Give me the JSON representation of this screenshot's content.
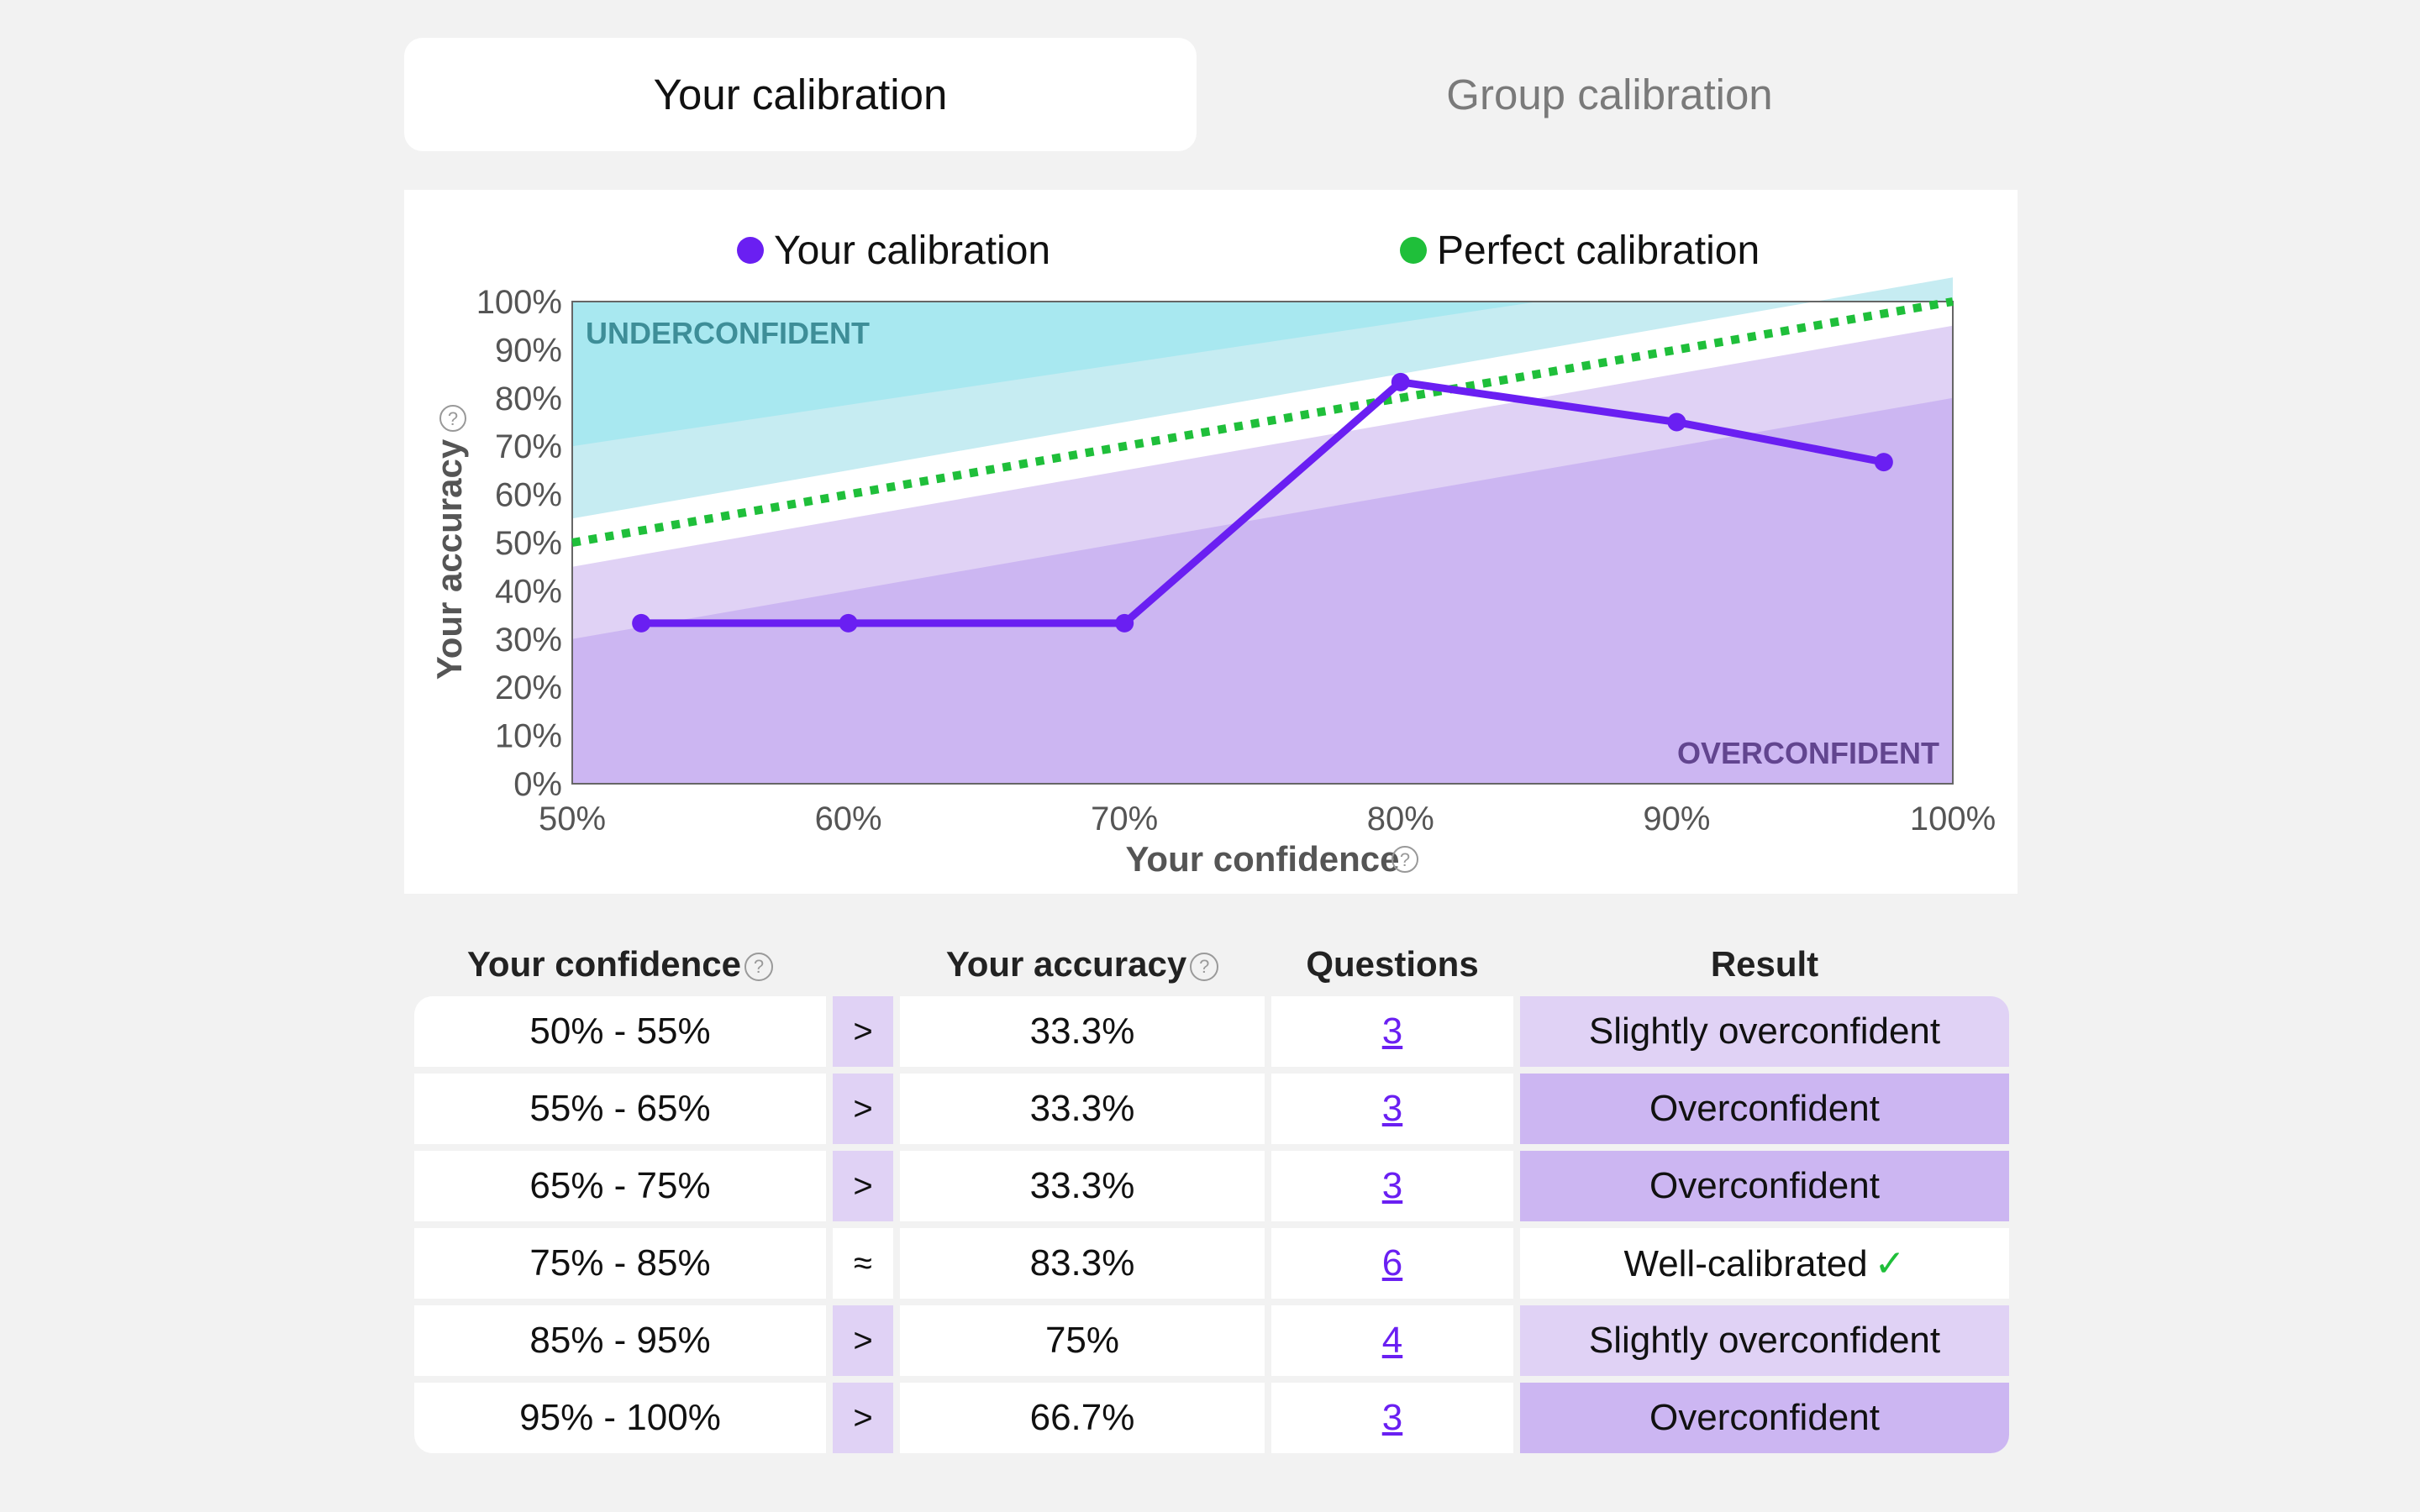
{
  "tabs": {
    "active": "Your calibration",
    "inactive": "Group calibration"
  },
  "colors": {
    "your_line": "#6a1ff2",
    "perfect_line": "#1fbf3a",
    "under_dark": "#a8e8f0",
    "under_light": "#c6ecf2",
    "over_light": "#e0d2f5",
    "over_dark": "#ccb6f2"
  },
  "chart": {
    "legend": [
      "Your calibration",
      "Perfect calibration"
    ],
    "zone_top": "UNDERCONFIDENT",
    "zone_bottom": "OVERCONFIDENT",
    "ylabel": "Your accuracy",
    "xlabel": "Your confidence"
  },
  "chart_data": {
    "type": "line",
    "xlabel": "Your confidence",
    "ylabel": "Your accuracy",
    "xlim": [
      50,
      100
    ],
    "ylim": [
      0,
      100
    ],
    "x_ticks": [
      "50%",
      "60%",
      "70%",
      "80%",
      "90%",
      "100%"
    ],
    "y_ticks": [
      "0%",
      "10%",
      "20%",
      "30%",
      "40%",
      "50%",
      "60%",
      "70%",
      "80%",
      "90%",
      "100%"
    ],
    "series": [
      {
        "name": "Your calibration",
        "x": [
          52.5,
          60,
          70,
          80,
          90,
          97.5
        ],
        "y": [
          33.3,
          33.3,
          33.3,
          83.3,
          75,
          66.7
        ]
      },
      {
        "name": "Perfect calibration",
        "x": [
          50,
          100
        ],
        "y": [
          50,
          100
        ]
      }
    ]
  },
  "table": {
    "headers": {
      "confidence": "Your confidence",
      "accuracy": "Your accuracy",
      "questions": "Questions",
      "result": "Result"
    },
    "rows": [
      {
        "confidence": "50% - 55%",
        "cmp": ">",
        "accuracy": "33.3%",
        "questions": "3",
        "result": "Slightly overconfident",
        "level": "slight"
      },
      {
        "confidence": "55% - 65%",
        "cmp": ">",
        "accuracy": "33.3%",
        "questions": "3",
        "result": "Overconfident",
        "level": "over"
      },
      {
        "confidence": "65% - 75%",
        "cmp": ">",
        "accuracy": "33.3%",
        "questions": "3",
        "result": "Overconfident",
        "level": "over"
      },
      {
        "confidence": "75% - 85%",
        "cmp": "≈",
        "accuracy": "83.3%",
        "questions": "6",
        "result": "Well-calibrated",
        "level": "well"
      },
      {
        "confidence": "85% - 95%",
        "cmp": ">",
        "accuracy": "75%",
        "questions": "4",
        "result": "Slightly overconfident",
        "level": "slight"
      },
      {
        "confidence": "95% - 100%",
        "cmp": ">",
        "accuracy": "66.7%",
        "questions": "3",
        "result": "Overconfident",
        "level": "over"
      }
    ]
  }
}
